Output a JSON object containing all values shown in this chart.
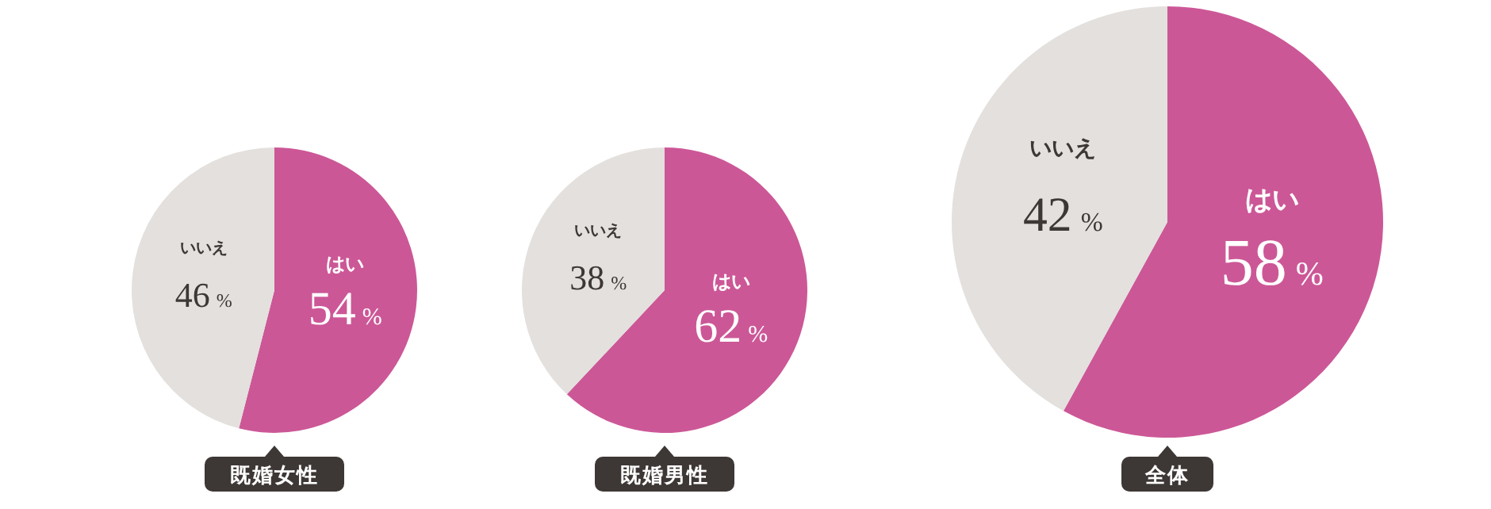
{
  "chart_data": [
    {
      "type": "pie",
      "title": "既婚女性",
      "categories": [
        "はい",
        "いいえ"
      ],
      "values": [
        54,
        46
      ],
      "value_labels": [
        "54%",
        "46%"
      ],
      "colors": [
        "#cc5797",
        "#e3e0dd"
      ]
    },
    {
      "type": "pie",
      "title": "既婚男性",
      "categories": [
        "はい",
        "いいえ"
      ],
      "values": [
        62,
        38
      ],
      "value_labels": [
        "62%",
        "38%"
      ],
      "colors": [
        "#cc5797",
        "#e3e0dd"
      ]
    },
    {
      "type": "pie",
      "title": "全体",
      "categories": [
        "はい",
        "いいえ"
      ],
      "values": [
        58,
        42
      ],
      "value_labels": [
        "58%",
        "42%"
      ],
      "colors": [
        "#cc5797",
        "#e3e0dd"
      ]
    }
  ]
}
